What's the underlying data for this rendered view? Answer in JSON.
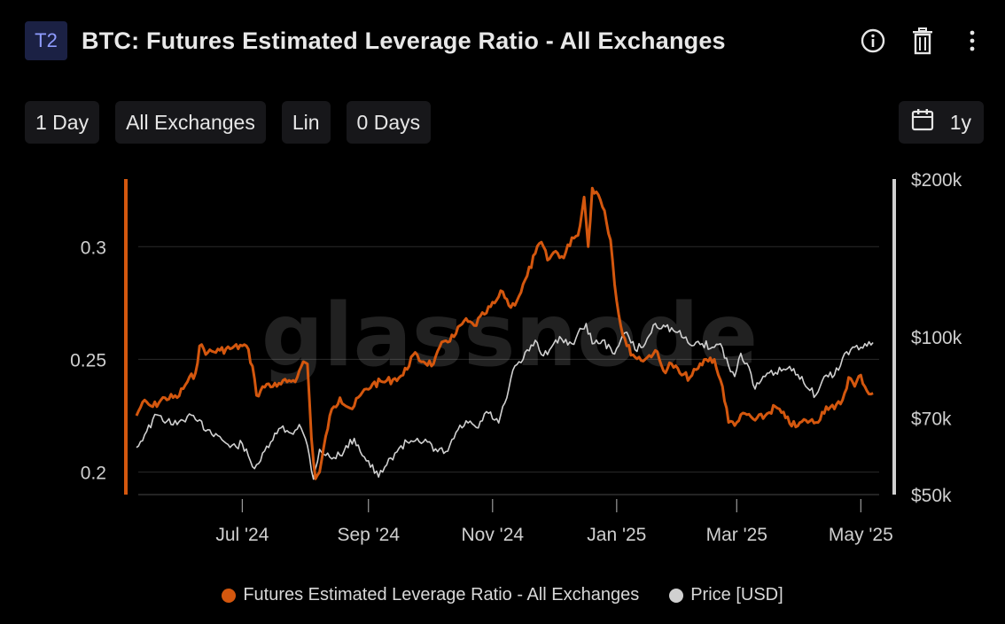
{
  "header": {
    "badge": "T2",
    "title": "BTC: Futures Estimated Leverage Ratio - All Exchanges",
    "icons": [
      "info-icon",
      "trash-icon",
      "more-vertical-icon"
    ]
  },
  "toolbar": {
    "resolution": "1 Day",
    "exchange": "All Exchanges",
    "scale": "Lin",
    "smoothing": "0 Days",
    "range": "1y",
    "range_icon": "calendar-icon"
  },
  "watermark": "glassnode",
  "colors": {
    "leverage": "#d4570e",
    "price": "#d0d0d0",
    "grid": "#2a2a2a"
  },
  "chart_data": {
    "type": "line",
    "title": "BTC: Futures Estimated Leverage Ratio - All Exchanges",
    "x_ticks": [
      "Jul '24",
      "Sep '24",
      "Nov '24",
      "Jan '25",
      "Mar '25",
      "May '25"
    ],
    "x_range": [
      "2024-05-10",
      "2025-05-10"
    ],
    "y_left": {
      "ticks": [
        "0.2",
        "0.25",
        "0.3"
      ],
      "tick_values": [
        0.2,
        0.25,
        0.3
      ],
      "range": [
        0.19,
        0.33
      ]
    },
    "y_right": {
      "scale": "log",
      "ticks": [
        "$50k",
        "$70k",
        "$100k",
        "$200k"
      ],
      "tick_values": [
        50000,
        70000,
        100000,
        200000
      ],
      "range": [
        50000,
        200000
      ]
    },
    "grid": true,
    "legend_position": "bottom",
    "series": [
      {
        "name": "Futures Estimated Leverage Ratio - All Exchanges",
        "axis": "left",
        "points": [
          [
            "2024-05-10",
            0.225
          ],
          [
            "2024-05-13",
            0.231
          ],
          [
            "2024-05-18",
            0.229
          ],
          [
            "2024-05-24",
            0.233
          ],
          [
            "2024-05-30",
            0.233
          ],
          [
            "2024-06-04",
            0.24
          ],
          [
            "2024-06-08",
            0.244
          ],
          [
            "2024-06-10",
            0.256
          ],
          [
            "2024-06-14",
            0.253
          ],
          [
            "2024-06-20",
            0.254
          ],
          [
            "2024-06-26",
            0.255
          ],
          [
            "2024-07-01",
            0.256
          ],
          [
            "2024-07-03",
            0.256
          ],
          [
            "2024-07-06",
            0.247
          ],
          [
            "2024-07-08",
            0.234
          ],
          [
            "2024-07-13",
            0.239
          ],
          [
            "2024-07-18",
            0.238
          ],
          [
            "2024-07-23",
            0.24
          ],
          [
            "2024-07-28",
            0.242
          ],
          [
            "2024-07-31",
            0.249
          ],
          [
            "2024-08-02",
            0.248
          ],
          [
            "2024-08-04",
            0.215
          ],
          [
            "2024-08-06",
            0.197
          ],
          [
            "2024-08-08",
            0.2
          ],
          [
            "2024-08-13",
            0.225
          ],
          [
            "2024-08-18",
            0.233
          ],
          [
            "2024-08-24",
            0.228
          ],
          [
            "2024-08-28",
            0.234
          ],
          [
            "2024-09-03",
            0.239
          ],
          [
            "2024-09-08",
            0.24
          ],
          [
            "2024-09-13",
            0.241
          ],
          [
            "2024-09-18",
            0.243
          ],
          [
            "2024-09-23",
            0.252
          ],
          [
            "2024-09-28",
            0.249
          ],
          [
            "2024-10-03",
            0.248
          ],
          [
            "2024-10-08",
            0.258
          ],
          [
            "2024-10-13",
            0.26
          ],
          [
            "2024-10-18",
            0.267
          ],
          [
            "2024-10-23",
            0.265
          ],
          [
            "2024-10-28",
            0.27
          ],
          [
            "2024-11-02",
            0.275
          ],
          [
            "2024-11-06",
            0.28
          ],
          [
            "2024-11-10",
            0.273
          ],
          [
            "2024-11-14",
            0.278
          ],
          [
            "2024-11-18",
            0.287
          ],
          [
            "2024-11-22",
            0.297
          ],
          [
            "2024-11-25",
            0.302
          ],
          [
            "2024-11-28",
            0.294
          ],
          [
            "2024-12-02",
            0.298
          ],
          [
            "2024-12-06",
            0.295
          ],
          [
            "2024-12-10",
            0.304
          ],
          [
            "2024-12-13",
            0.305
          ],
          [
            "2024-12-16",
            0.322
          ],
          [
            "2024-12-18",
            0.3
          ],
          [
            "2024-12-20",
            0.326
          ],
          [
            "2024-12-23",
            0.323
          ],
          [
            "2024-12-26",
            0.316
          ],
          [
            "2024-12-29",
            0.303
          ],
          [
            "2025-01-01",
            0.276
          ],
          [
            "2025-01-03",
            0.265
          ],
          [
            "2025-01-06",
            0.256
          ],
          [
            "2025-01-10",
            0.251
          ],
          [
            "2025-01-15",
            0.25
          ],
          [
            "2025-01-20",
            0.254
          ],
          [
            "2025-01-24",
            0.245
          ],
          [
            "2025-01-28",
            0.248
          ],
          [
            "2025-02-02",
            0.243
          ],
          [
            "2025-02-06",
            0.242
          ],
          [
            "2025-02-10",
            0.246
          ],
          [
            "2025-02-14",
            0.25
          ],
          [
            "2025-02-18",
            0.25
          ],
          [
            "2025-02-20",
            0.243
          ],
          [
            "2025-02-22",
            0.238
          ],
          [
            "2025-02-25",
            0.222
          ],
          [
            "2025-03-01",
            0.222
          ],
          [
            "2025-03-05",
            0.226
          ],
          [
            "2025-03-10",
            0.223
          ],
          [
            "2025-03-15",
            0.225
          ],
          [
            "2025-03-20",
            0.229
          ],
          [
            "2025-03-25",
            0.224
          ],
          [
            "2025-03-30",
            0.22
          ],
          [
            "2025-04-04",
            0.223
          ],
          [
            "2025-04-09",
            0.222
          ],
          [
            "2025-04-14",
            0.229
          ],
          [
            "2025-04-18",
            0.228
          ],
          [
            "2025-04-22",
            0.232
          ],
          [
            "2025-04-25",
            0.242
          ],
          [
            "2025-04-28",
            0.238
          ],
          [
            "2025-05-01",
            0.243
          ],
          [
            "2025-05-04",
            0.236
          ],
          [
            "2025-05-07",
            0.235
          ]
        ]
      },
      {
        "name": "Price [USD]",
        "axis": "right",
        "points": [
          [
            "2024-05-10",
            61500
          ],
          [
            "2024-05-15",
            66000
          ],
          [
            "2024-05-20",
            71000
          ],
          [
            "2024-05-25",
            69000
          ],
          [
            "2024-05-30",
            68000
          ],
          [
            "2024-06-04",
            70500
          ],
          [
            "2024-06-08",
            69500
          ],
          [
            "2024-06-14",
            66500
          ],
          [
            "2024-06-20",
            64500
          ],
          [
            "2024-06-25",
            61500
          ],
          [
            "2024-07-01",
            62500
          ],
          [
            "2024-07-06",
            56500
          ],
          [
            "2024-07-10",
            58000
          ],
          [
            "2024-07-15",
            63000
          ],
          [
            "2024-07-20",
            67000
          ],
          [
            "2024-07-25",
            65500
          ],
          [
            "2024-07-29",
            68000
          ],
          [
            "2024-08-02",
            62000
          ],
          [
            "2024-08-05",
            53500
          ],
          [
            "2024-08-08",
            61000
          ],
          [
            "2024-08-14",
            58500
          ],
          [
            "2024-08-20",
            60500
          ],
          [
            "2024-08-25",
            64000
          ],
          [
            "2024-08-30",
            59000
          ],
          [
            "2024-09-06",
            54000
          ],
          [
            "2024-09-10",
            57000
          ],
          [
            "2024-09-14",
            60000
          ],
          [
            "2024-09-20",
            63000
          ],
          [
            "2024-09-25",
            64000
          ],
          [
            "2024-09-30",
            63000
          ],
          [
            "2024-10-03",
            60500
          ],
          [
            "2024-10-10",
            60500
          ],
          [
            "2024-10-15",
            66500
          ],
          [
            "2024-10-20",
            68500
          ],
          [
            "2024-10-25",
            67000
          ],
          [
            "2024-10-29",
            72000
          ],
          [
            "2024-11-04",
            68500
          ],
          [
            "2024-11-08",
            76500
          ],
          [
            "2024-11-12",
            88000
          ],
          [
            "2024-11-16",
            90500
          ],
          [
            "2024-11-22",
            98500
          ],
          [
            "2024-11-26",
            92000
          ],
          [
            "2024-12-01",
            97000
          ],
          [
            "2024-12-05",
            99000
          ],
          [
            "2024-12-10",
            97000
          ],
          [
            "2024-12-17",
            106000
          ],
          [
            "2024-12-20",
            97000
          ],
          [
            "2024-12-25",
            98500
          ],
          [
            "2024-12-30",
            93000
          ],
          [
            "2025-01-06",
            102000
          ],
          [
            "2025-01-10",
            94500
          ],
          [
            "2025-01-15",
            97000
          ],
          [
            "2025-01-20",
            106000
          ],
          [
            "2025-01-25",
            104500
          ],
          [
            "2025-01-31",
            102000
          ],
          [
            "2025-02-05",
            97500
          ],
          [
            "2025-02-12",
            97000
          ],
          [
            "2025-02-18",
            95500
          ],
          [
            "2025-02-21",
            97000
          ],
          [
            "2025-02-25",
            88000
          ],
          [
            "2025-02-28",
            84000
          ],
          [
            "2025-03-03",
            93000
          ],
          [
            "2025-03-06",
            89000
          ],
          [
            "2025-03-10",
            79500
          ],
          [
            "2025-03-15",
            84000
          ],
          [
            "2025-03-20",
            85500
          ],
          [
            "2025-03-26",
            87000
          ],
          [
            "2025-04-02",
            84000
          ],
          [
            "2025-04-06",
            79000
          ],
          [
            "2025-04-09",
            77500
          ],
          [
            "2025-04-14",
            84500
          ],
          [
            "2025-04-18",
            84500
          ],
          [
            "2025-04-22",
            91000
          ],
          [
            "2025-04-26",
            94500
          ],
          [
            "2025-05-01",
            95500
          ],
          [
            "2025-05-04",
            96000
          ],
          [
            "2025-05-07",
            97500
          ]
        ]
      }
    ]
  },
  "legend": [
    {
      "label": "Futures Estimated Leverage Ratio - All Exchanges",
      "color": "#d4570e"
    },
    {
      "label": "Price [USD]",
      "color": "#d0d0d0"
    }
  ]
}
